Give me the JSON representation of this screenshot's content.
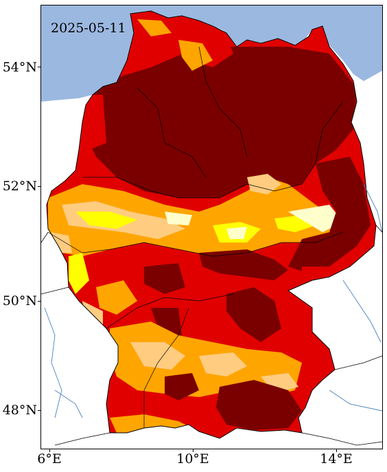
{
  "map": {
    "date": "2025-05-11",
    "lat_ticks": [
      {
        "label": "54°N",
        "value": 54
      },
      {
        "label": "52°N",
        "value": 52
      },
      {
        "label": "50°N",
        "value": 50
      },
      {
        "label": "48°N",
        "value": 48
      }
    ],
    "lon_ticks": [
      {
        "label": "6°E",
        "value": 6
      },
      {
        "label": "10°E",
        "value": 10
      },
      {
        "label": "14°E",
        "value": 14
      }
    ],
    "colors": {
      "sea": "#9bb8e0",
      "land_outside": "#ffffff",
      "dark_red": "#7a0000",
      "red": "#e00000",
      "orange": "#ffa500",
      "light_orange": "#ffcc80",
      "yellow": "#ffff00",
      "pale_yellow": "#ffffcc",
      "river": "#4a7fbf",
      "border": "#000000"
    }
  }
}
